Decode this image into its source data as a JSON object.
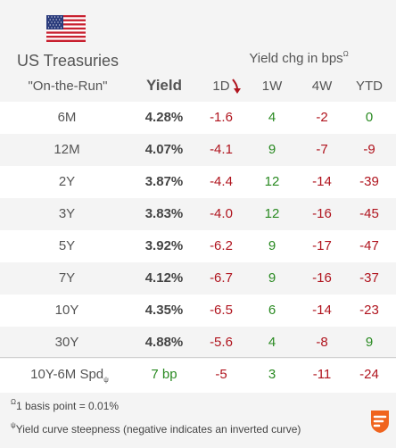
{
  "header": {
    "title": "US Treasuries",
    "subtitle": "\"On-the-Run\"",
    "yield_label": "Yield",
    "change_label": "Yield chg in bps",
    "change_label_sup": "Ω",
    "columns": [
      "1D",
      "1W",
      "4W",
      "YTD"
    ]
  },
  "rows": [
    {
      "label": "6M",
      "yield": "4.28%",
      "d1": "-1.6",
      "w1": "4",
      "w4": "-2",
      "ytd": "0"
    },
    {
      "label": "12M",
      "yield": "4.07%",
      "d1": "-4.1",
      "w1": "9",
      "w4": "-7",
      "ytd": "-9"
    },
    {
      "label": "2Y",
      "yield": "3.87%",
      "d1": "-4.4",
      "w1": "12",
      "w4": "-14",
      "ytd": "-39"
    },
    {
      "label": "3Y",
      "yield": "3.83%",
      "d1": "-4.0",
      "w1": "12",
      "w4": "-16",
      "ytd": "-45"
    },
    {
      "label": "5Y",
      "yield": "3.92%",
      "d1": "-6.2",
      "w1": "9",
      "w4": "-17",
      "ytd": "-47"
    },
    {
      "label": "7Y",
      "yield": "4.12%",
      "d1": "-6.7",
      "w1": "9",
      "w4": "-16",
      "ytd": "-37"
    },
    {
      "label": "10Y",
      "yield": "4.35%",
      "d1": "-6.5",
      "w1": "6",
      "w4": "-14",
      "ytd": "-23"
    },
    {
      "label": "30Y",
      "yield": "4.88%",
      "d1": "-5.6",
      "w1": "4",
      "w4": "-8",
      "ytd": "9"
    }
  ],
  "spread": {
    "label": "10Y-6M Spd",
    "label_sup": "ψ",
    "yield": "7 bp",
    "d1": "-5",
    "w1": "3",
    "w4": "-11",
    "ytd": "-24"
  },
  "footnotes": {
    "bp_sup": "Ω",
    "bp_text": "1 basis point = 0.01%",
    "steep_sup": "ψ",
    "steep_text": "Yield curve steepness (negative indicates an inverted curve)"
  },
  "colors": {
    "negative": "#b0141e",
    "positive": "#2a8a22",
    "header_bg": "#f4f4f4",
    "logo": "#f0641e"
  },
  "icons": {
    "flag": "us-flag-icon",
    "sort": "sort-down-arrow-icon",
    "logo": "brand-logo-icon"
  }
}
